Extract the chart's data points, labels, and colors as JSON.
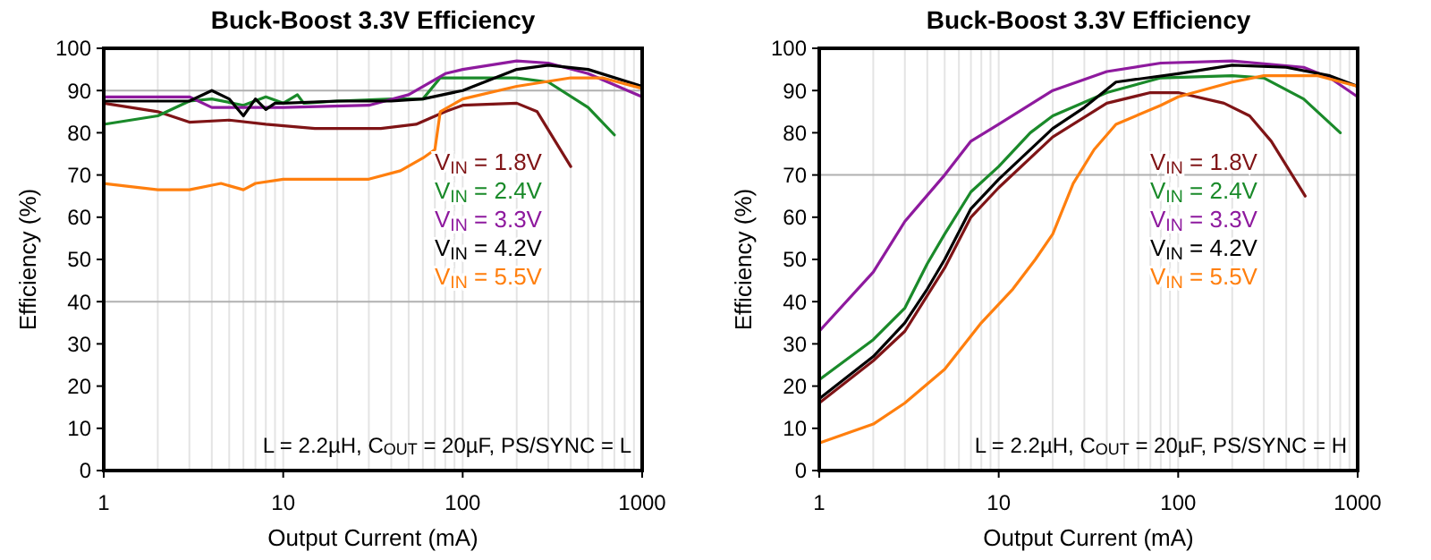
{
  "chart_data": [
    {
      "type": "line",
      "title": "Buck-Boost 3.3V Efficiency",
      "xlabel": "Output Current (mA)",
      "ylabel": "Efficiency (%)",
      "log": "x",
      "grid": "x",
      "legend": "right",
      "xlim": [
        1,
        1000
      ],
      "ylim": [
        0,
        100
      ],
      "xticks": [
        1,
        {
          "value": 2,
          "label": null
        },
        {
          "value": 3,
          "label": null
        },
        {
          "value": 4,
          "label": null
        },
        {
          "value": 5,
          "label": null
        },
        {
          "value": 6,
          "label": null
        },
        {
          "value": 7,
          "label": null
        },
        {
          "value": 8,
          "label": null
        },
        {
          "value": 9,
          "label": null
        },
        10,
        {
          "value": 20,
          "label": null
        },
        {
          "value": 30,
          "label": null
        },
        {
          "value": 40,
          "label": null
        },
        {
          "value": 50,
          "label": null
        },
        {
          "value": 60,
          "label": null
        },
        {
          "value": 70,
          "label": null
        },
        {
          "value": 80,
          "label": null
        },
        {
          "value": 90,
          "label": null
        },
        100,
        {
          "value": 200,
          "label": null
        },
        {
          "value": 300,
          "label": null
        },
        {
          "value": 400,
          "label": null
        },
        {
          "value": 500,
          "label": null
        },
        {
          "value": 600,
          "label": null
        },
        {
          "value": 700,
          "label": null
        },
        {
          "value": 800,
          "label": null
        },
        {
          "value": 900,
          "label": null
        },
        1000
      ],
      "yticks": [
        0,
        10,
        20,
        30,
        40,
        50,
        60,
        70,
        80,
        90,
        100
      ],
      "ref_lines": [
        {
          "axis": "y",
          "value": 90,
          "color": "#b0b0b0"
        },
        {
          "axis": "y",
          "value": 40,
          "color": "#b0b0b0"
        }
      ],
      "annotations": [
        "L = 2.2µH, C$_{OUT}$ = 20µF, PS/SYNC = L"
      ],
      "series": [
        {
          "name": "V$_{IN}$ = 1.8V",
          "color": "#7f1416",
          "x": [
            1,
            2,
            3,
            5,
            8,
            15,
            35,
            55,
            80,
            100,
            200,
            260,
            400
          ],
          "values": [
            87,
            85,
            82.5,
            83,
            82,
            81,
            81,
            82,
            85,
            86.5,
            87,
            85,
            72
          ]
        },
        {
          "name": "V$_{IN}$ = 2.4V",
          "color": "#1a8a2a",
          "x": [
            1,
            2,
            3,
            4,
            6,
            8,
            10,
            12,
            13,
            20,
            40,
            60,
            75,
            100,
            200,
            300,
            500,
            700
          ],
          "values": [
            82,
            84,
            87.5,
            88,
            86.5,
            88.5,
            87,
            89,
            87,
            87.5,
            88,
            88,
            93,
            93,
            93,
            92,
            86,
            79.5
          ]
        },
        {
          "name": "V$_{IN}$ = 3.3V",
          "color": "#8e1a9e",
          "x": [
            1,
            3,
            4,
            10,
            30,
            50,
            80,
            100,
            200,
            300,
            500,
            1000
          ],
          "values": [
            88.5,
            88.5,
            86,
            86,
            86.5,
            89,
            94,
            95,
            97,
            96.5,
            94,
            88.5
          ]
        },
        {
          "name": "V$_{IN}$ = 4.2V",
          "color": "#000000",
          "x": [
            1,
            3,
            4,
            5,
            6,
            7,
            8,
            9,
            10,
            20,
            40,
            60,
            100,
            200,
            300,
            500,
            1000
          ],
          "values": [
            87.5,
            87.5,
            90,
            88,
            84,
            88,
            85.5,
            87,
            87,
            87.5,
            87.5,
            88,
            90,
            95,
            96,
            95,
            91
          ]
        },
        {
          "name": "V$_{IN}$ = 5.5V",
          "color": "#ff7f0e",
          "x": [
            1,
            2,
            3,
            4.5,
            6,
            7,
            10,
            30,
            45,
            60,
            70,
            75,
            100,
            200,
            400,
            600,
            1000
          ],
          "values": [
            68,
            66.5,
            66.5,
            68,
            66.5,
            68,
            69,
            69,
            71,
            74,
            76,
            85,
            88,
            91,
            93,
            93,
            90.5
          ]
        }
      ]
    },
    {
      "type": "line",
      "title": "Buck-Boost 3.3V Efficiency",
      "xlabel": "Output Current (mA)",
      "ylabel": "Efficiency (%)",
      "log": "x",
      "grid": "x",
      "legend": "right",
      "xlim": [
        1,
        1000
      ],
      "ylim": [
        0,
        100
      ],
      "xticks": [
        1,
        {
          "value": 2,
          "label": null
        },
        {
          "value": 3,
          "label": null
        },
        {
          "value": 4,
          "label": null
        },
        {
          "value": 5,
          "label": null
        },
        {
          "value": 6,
          "label": null
        },
        {
          "value": 7,
          "label": null
        },
        {
          "value": 8,
          "label": null
        },
        {
          "value": 9,
          "label": null
        },
        10,
        {
          "value": 20,
          "label": null
        },
        {
          "value": 30,
          "label": null
        },
        {
          "value": 40,
          "label": null
        },
        {
          "value": 50,
          "label": null
        },
        {
          "value": 60,
          "label": null
        },
        {
          "value": 70,
          "label": null
        },
        {
          "value": 80,
          "label": null
        },
        {
          "value": 90,
          "label": null
        },
        100,
        {
          "value": 200,
          "label": null
        },
        {
          "value": 300,
          "label": null
        },
        {
          "value": 400,
          "label": null
        },
        {
          "value": 500,
          "label": null
        },
        {
          "value": 600,
          "label": null
        },
        {
          "value": 700,
          "label": null
        },
        {
          "value": 800,
          "label": null
        },
        {
          "value": 900,
          "label": null
        },
        1000
      ],
      "yticks": [
        0,
        10,
        20,
        30,
        40,
        50,
        60,
        70,
        80,
        90,
        100
      ],
      "ref_lines": [
        {
          "axis": "y",
          "value": 70,
          "color": "#b0b0b0"
        }
      ],
      "annotations": [
        "L = 2.2µH, C$_{OUT}$ = 20µF, PS/SYNC = H"
      ],
      "series": [
        {
          "name": "V$_{IN}$ = 1.8V",
          "color": "#7f1416",
          "x": [
            1,
            2,
            3,
            5,
            7,
            10,
            20,
            40,
            70,
            100,
            180,
            250,
            330,
            510
          ],
          "values": [
            16,
            26,
            33,
            48,
            60,
            67,
            79,
            87,
            89.5,
            89.5,
            87,
            84,
            78,
            65
          ]
        },
        {
          "name": "V$_{IN}$ = 2.4V",
          "color": "#1a8a2a",
          "x": [
            1,
            2,
            3,
            4,
            5,
            7,
            10,
            15,
            20,
            40,
            80,
            200,
            300,
            500,
            800
          ],
          "values": [
            21.5,
            31,
            38.5,
            49,
            56,
            66,
            72,
            80,
            84,
            89.5,
            93,
            93.5,
            93,
            88,
            80
          ]
        },
        {
          "name": "V$_{IN}$ = 3.3V",
          "color": "#8e1a9e",
          "x": [
            1,
            2,
            3,
            5,
            7,
            10,
            20,
            40,
            80,
            200,
            500,
            700,
            1000
          ],
          "values": [
            33,
            47,
            59,
            70,
            78,
            82,
            90,
            94.5,
            96.5,
            97,
            95.5,
            93,
            88.5
          ]
        },
        {
          "name": "V$_{IN}$ = 4.2V",
          "color": "#000000",
          "x": [
            1,
            2,
            3,
            4,
            5,
            7,
            10,
            20,
            30,
            45,
            100,
            200,
            400,
            700,
            1000
          ],
          "values": [
            17,
            27,
            35,
            43,
            50,
            62,
            69,
            81,
            86,
            92,
            94,
            96,
            95.5,
            93.5,
            91
          ]
        },
        {
          "name": "V$_{IN}$ = 5.5V",
          "color": "#ff7f0e",
          "x": [
            1,
            2,
            3,
            5,
            8,
            12,
            16,
            20,
            26,
            34,
            45,
            80,
            100,
            200,
            300,
            600,
            1000
          ],
          "values": [
            6.5,
            11,
            16,
            24,
            35,
            43,
            50,
            56,
            68,
            76,
            82,
            86.5,
            88.5,
            92,
            93.5,
            93.5,
            91
          ]
        }
      ]
    }
  ]
}
